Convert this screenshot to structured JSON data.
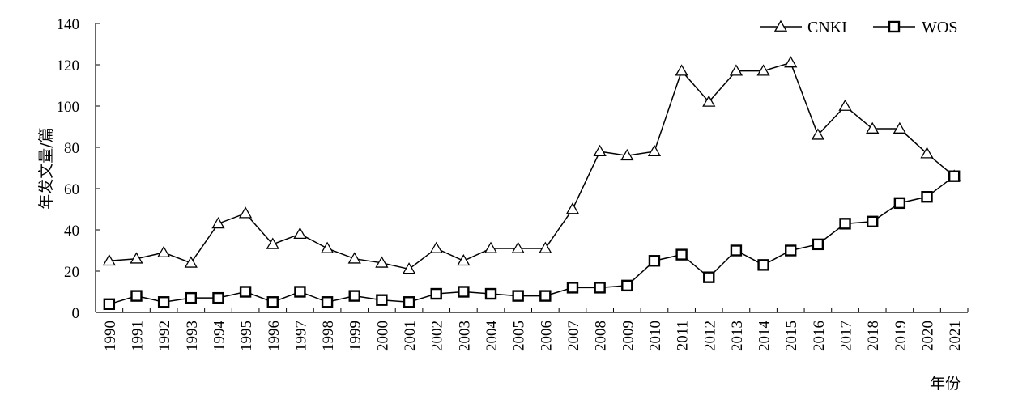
{
  "chart_data": {
    "type": "line",
    "xlabel": "年份",
    "ylabel": "年发文量/篇",
    "ylim": [
      0,
      140
    ],
    "yticks": [
      "0",
      "20",
      "40",
      "60",
      "80",
      "100",
      "120",
      "140"
    ],
    "categories": [
      "1990",
      "1991",
      "1992",
      "1993",
      "1994",
      "1995",
      "1996",
      "1997",
      "1998",
      "1999",
      "2000",
      "2001",
      "2002",
      "2003",
      "2004",
      "2005",
      "2006",
      "2007",
      "2008",
      "2009",
      "2010",
      "2011",
      "2012",
      "2013",
      "2014",
      "2015",
      "2016",
      "2017",
      "2018",
      "2019",
      "2020",
      "2021"
    ],
    "legend_position": "top-right",
    "grid": false,
    "series": [
      {
        "name": "CNKI",
        "marker": "triangle",
        "values": [
          25,
          26,
          29,
          24,
          43,
          48,
          33,
          38,
          31,
          26,
          24,
          21,
          31,
          25,
          31,
          31,
          31,
          50,
          78,
          76,
          78,
          117,
          102,
          117,
          117,
          121,
          86,
          100,
          89,
          89,
          77,
          66
        ]
      },
      {
        "name": "WOS",
        "marker": "square",
        "values": [
          4,
          8,
          5,
          7,
          7,
          10,
          5,
          10,
          5,
          8,
          6,
          5,
          9,
          10,
          9,
          8,
          8,
          12,
          12,
          13,
          25,
          28,
          17,
          30,
          23,
          30,
          33,
          43,
          44,
          53,
          56,
          66
        ]
      }
    ]
  }
}
